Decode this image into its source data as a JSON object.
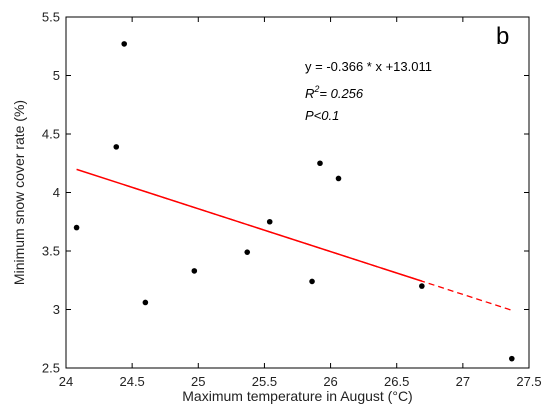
{
  "chart_data": {
    "type": "scatter",
    "title": "",
    "panel_label": "b",
    "xlabel": "Maximum temperature in August (°C)",
    "ylabel": "Minimum snow cover rate (%)",
    "xlim": [
      24,
      27.5
    ],
    "ylim": [
      2.5,
      5.5
    ],
    "xticks": [
      "24",
      "24.5",
      "25",
      "25.5",
      "26",
      "26.5",
      "27",
      "27.5"
    ],
    "yticks": [
      "2.5",
      "3",
      "3.5",
      "4",
      "4.5",
      "5",
      "5.5"
    ],
    "points": [
      {
        "x": 24.08,
        "y": 3.7
      },
      {
        "x": 24.38,
        "y": 4.39
      },
      {
        "x": 24.44,
        "y": 5.27
      },
      {
        "x": 24.6,
        "y": 3.06
      },
      {
        "x": 24.97,
        "y": 3.33
      },
      {
        "x": 25.37,
        "y": 3.49
      },
      {
        "x": 25.54,
        "y": 3.75
      },
      {
        "x": 25.86,
        "y": 3.24
      },
      {
        "x": 25.92,
        "y": 4.25
      },
      {
        "x": 26.06,
        "y": 4.12
      },
      {
        "x": 26.69,
        "y": 3.2
      },
      {
        "x": 27.37,
        "y": 2.58
      }
    ],
    "fit": {
      "slope": -0.366,
      "intercept": 13.011,
      "solid_x": [
        24.08,
        26.69
      ],
      "dashed_x": [
        24.44,
        27.37
      ],
      "color": "#ff0000"
    },
    "point_color": "#000000",
    "grid": false,
    "annotations": {
      "equation": "y = -0.366 * x +13.011",
      "r2_prefix": "R",
      "r2_sup": "2",
      "r2_value": "= 0.256",
      "p_value": "P<0.1"
    }
  }
}
